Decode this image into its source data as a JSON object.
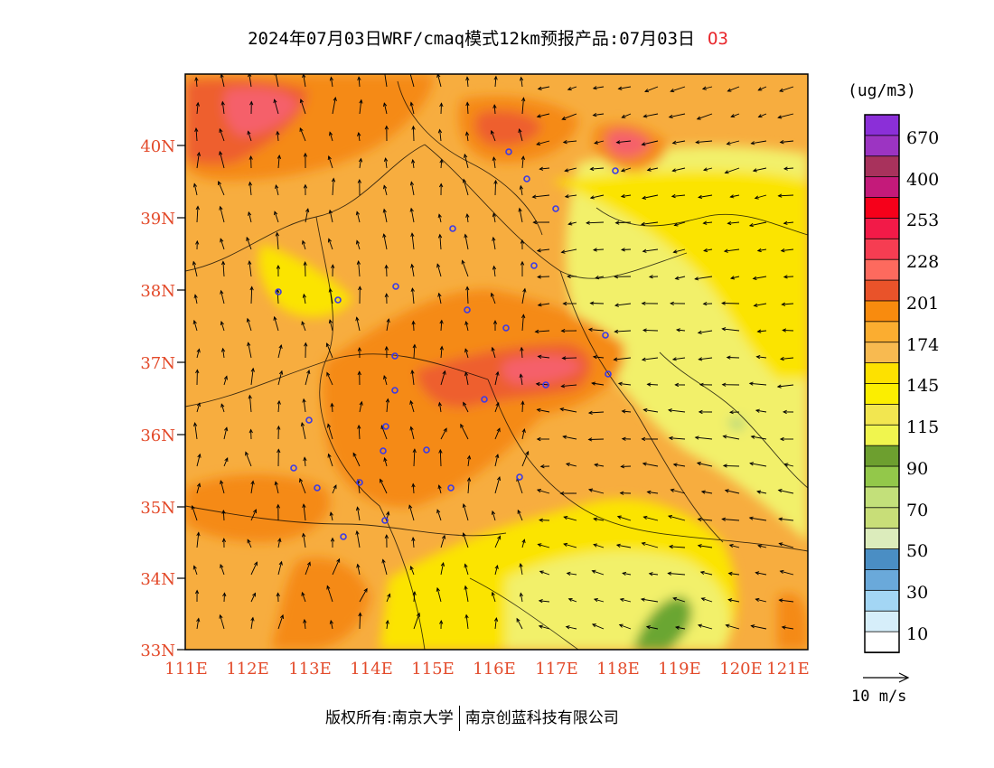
{
  "title": {
    "main": "2024年07月03日WRF/cmaq模式12km预报产品:07月03日",
    "species": "O3"
  },
  "map": {
    "lat_labels": [
      "40N",
      "39N",
      "38N",
      "37N",
      "36N",
      "35N",
      "34N",
      "33N"
    ],
    "lon_labels": [
      "111E",
      "112E",
      "113E",
      "114E",
      "115E",
      "116E",
      "117E",
      "118E",
      "119E",
      "120E",
      "121E"
    ],
    "colors": {
      "c50": "#deedbf",
      "c70": "#bcd97a",
      "c90": "#6aa633",
      "c115": "#f2f06a",
      "c145": "#fbe400",
      "c174a": "#f7ad3f",
      "c174b": "#f7b83a",
      "c201": "#f58a18",
      "c228a": "#ee5e2e",
      "c228b": "#f5606a",
      "axis_label": "#e34a2a",
      "station_marker": "#3a3ae8"
    }
  },
  "legend": {
    "unit": "(ug/m3)",
    "ticks": [
      "670",
      "400",
      "253",
      "228",
      "201",
      "174",
      "145",
      "115",
      "90",
      "70",
      "50",
      "30",
      "10"
    ],
    "colors": [
      "#8b2fd8",
      "#9c34c2",
      "#a8325c",
      "#c41a7a",
      "#f6001a",
      "#f21a48",
      "#f63d52",
      "#fd6a5e",
      "#e9532a",
      "#f88b0e",
      "#fbad30",
      "#f8ba50",
      "#fde100",
      "#fbee00",
      "#f2e650",
      "#f0f54e",
      "#6d9f2f",
      "#93c84a",
      "#c3e07a",
      "#c8de78",
      "#dcecbc",
      "#4a8ec4",
      "#6aa9da",
      "#a3d6f4",
      "#d6eefa",
      "#ffffff"
    ]
  },
  "wind_reference": {
    "label": "10 m/s"
  },
  "copyright": {
    "owner": "版权所有:南京大学",
    "partner": "南京创蓝科技有限公司"
  }
}
